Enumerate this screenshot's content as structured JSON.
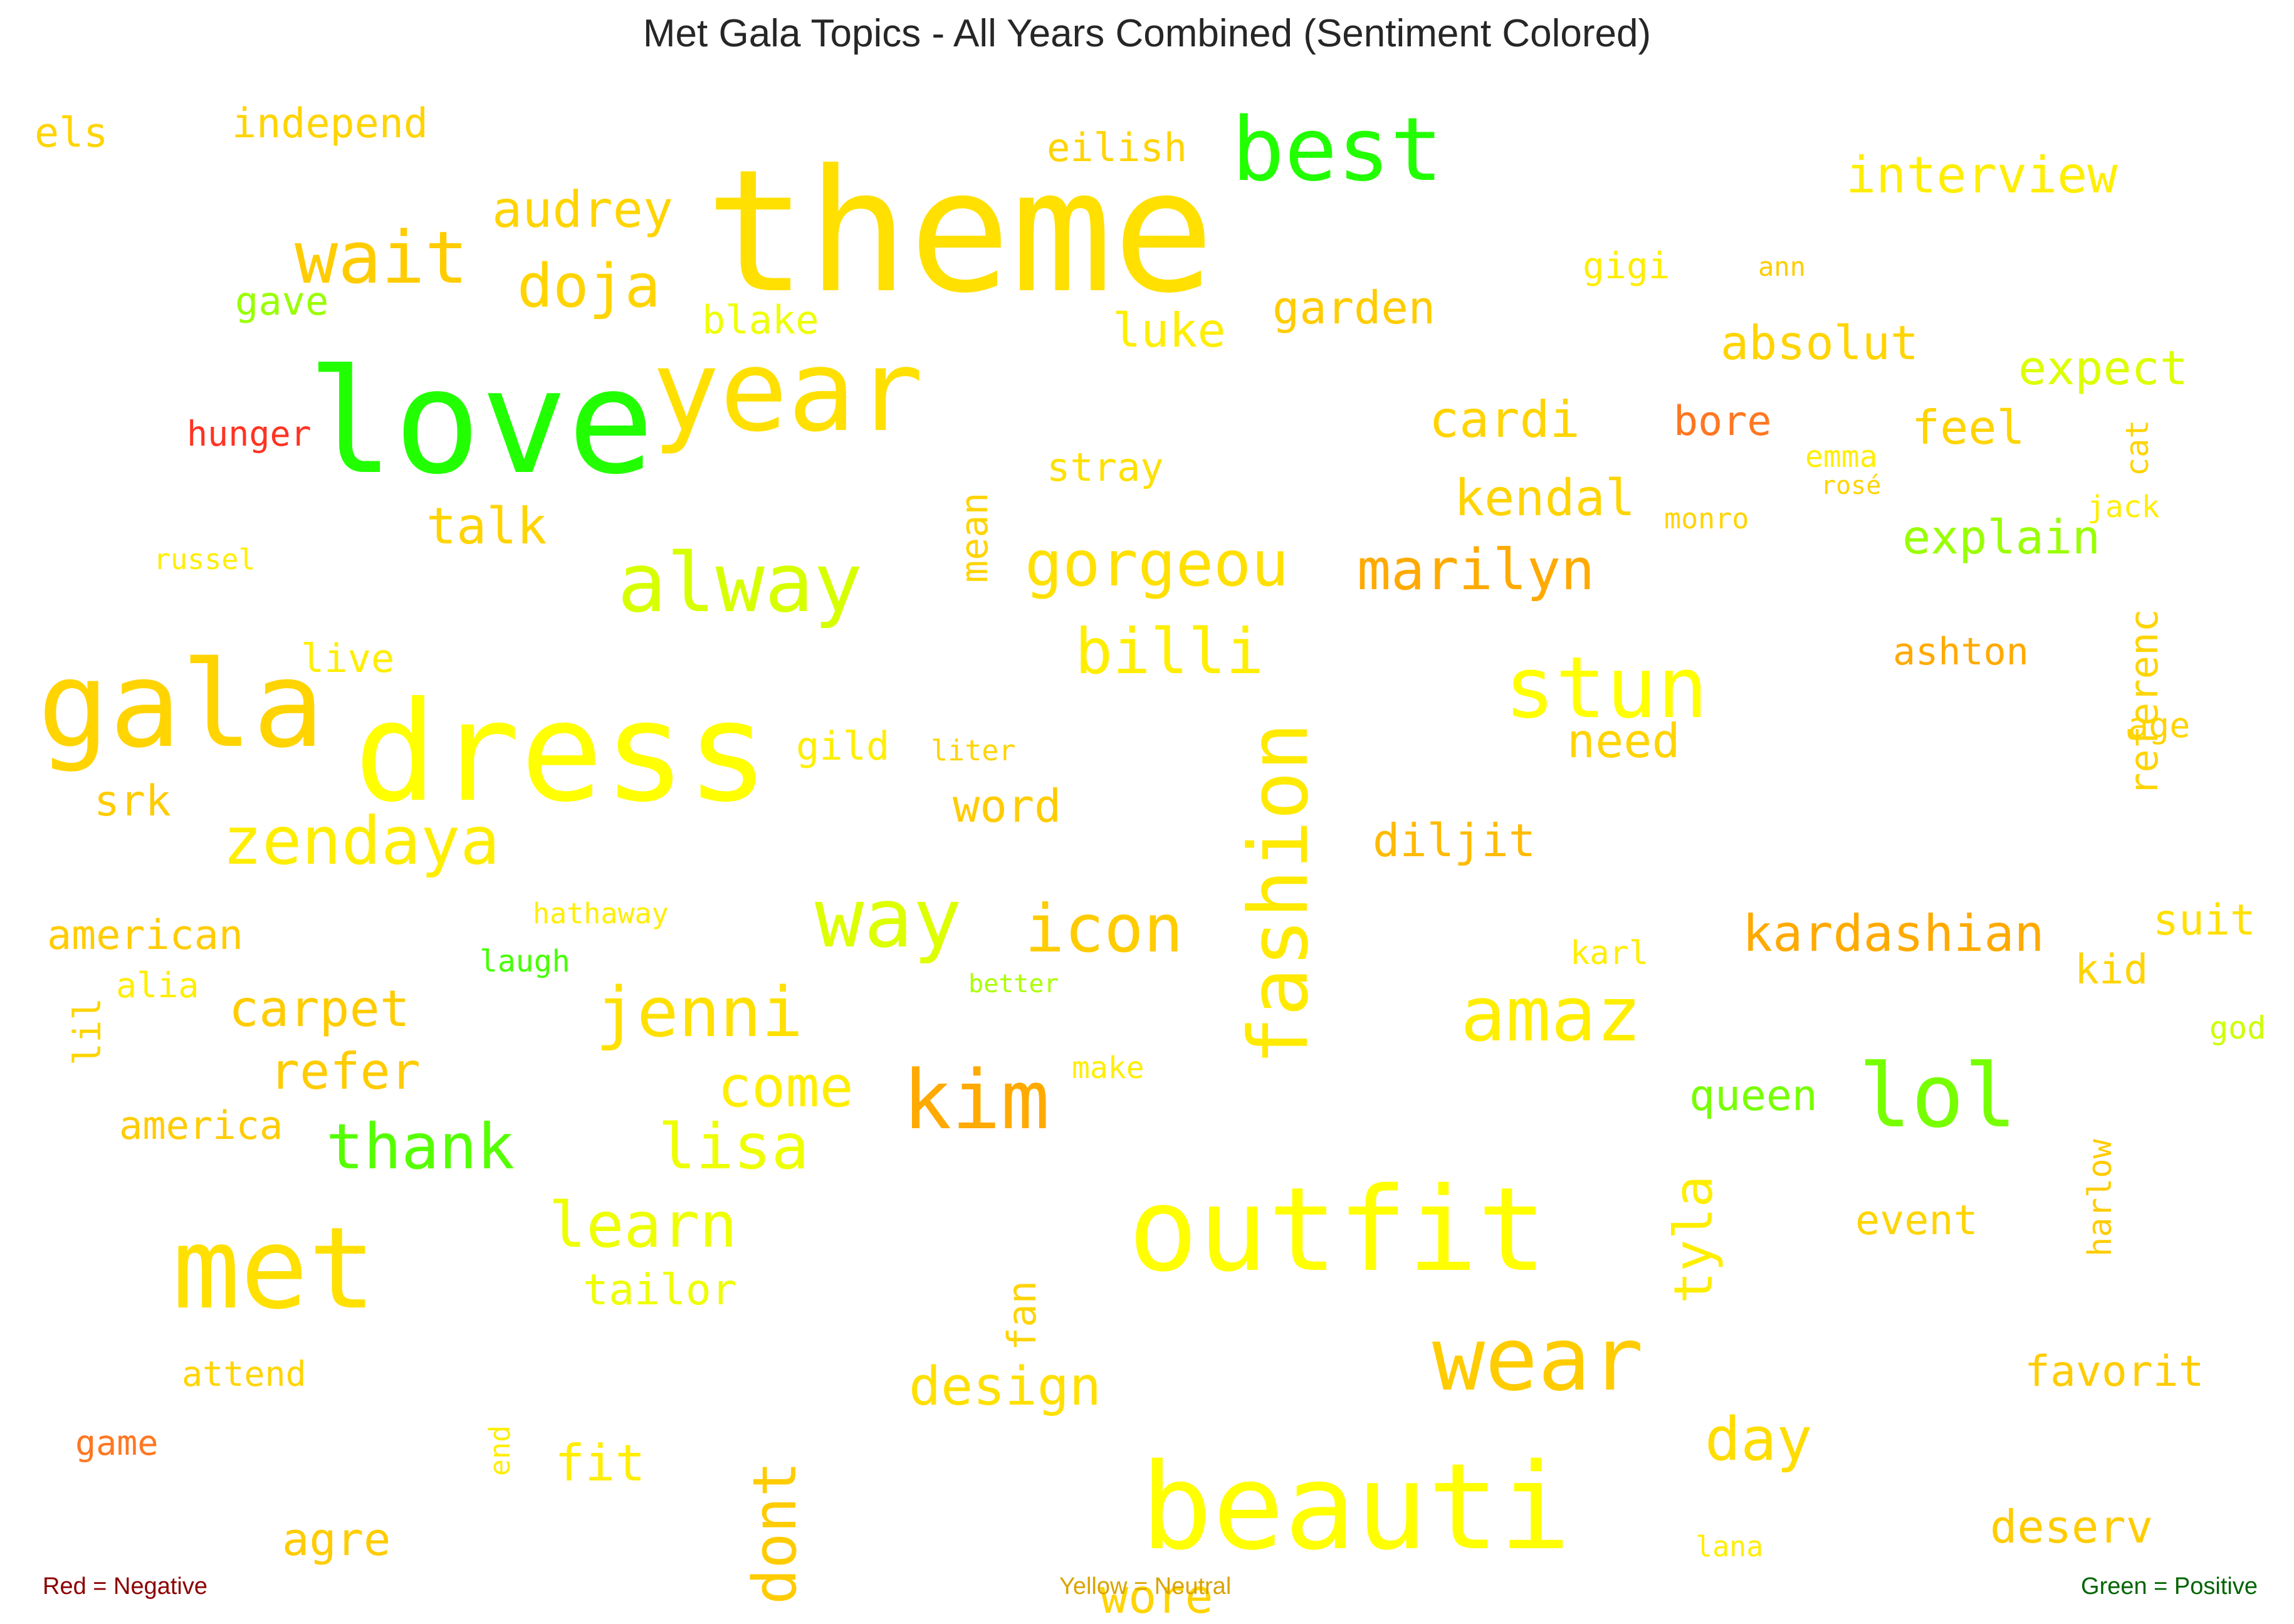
{
  "title": "Met Gala Topics - All Years Combined (Sentiment Colored)",
  "legend": {
    "negative": {
      "label": "Red = Negative",
      "color": "#8b0000"
    },
    "neutral": {
      "label": "Yellow = Neutral",
      "color": "#d9a300"
    },
    "positive": {
      "label": "Green = Positive",
      "color": "#006400"
    }
  },
  "words": [
    {
      "text": "theme",
      "color": "#ffe000"
    },
    {
      "text": "love",
      "color": "#22ff00"
    },
    {
      "text": "year",
      "color": "#ffe000"
    },
    {
      "text": "gala",
      "color": "#ffd400"
    },
    {
      "text": "dress",
      "color": "#ffff00"
    },
    {
      "text": "best",
      "color": "#22ff00"
    },
    {
      "text": "outfit",
      "color": "#ffff00"
    },
    {
      "text": "beauti",
      "color": "#ffff00"
    },
    {
      "text": "met",
      "color": "#ffe000"
    },
    {
      "text": "wear",
      "color": "#ffcc00"
    },
    {
      "text": "fashion",
      "color": "#ffea00"
    },
    {
      "text": "alway",
      "color": "#d8ff00"
    },
    {
      "text": "stun",
      "color": "#ffff00"
    },
    {
      "text": "kim",
      "color": "#ffaa00"
    },
    {
      "text": "way",
      "color": "#ddff00"
    },
    {
      "text": "lol",
      "color": "#77ff00"
    },
    {
      "text": "amaz",
      "color": "#ffee00"
    },
    {
      "text": "wait",
      "color": "#ffcc00"
    },
    {
      "text": "icon",
      "color": "#ffcc00"
    },
    {
      "text": "jenni",
      "color": "#ffe000"
    },
    {
      "text": "zendaya",
      "color": "#ffee00"
    },
    {
      "text": "gorgeou",
      "color": "#ffe000"
    },
    {
      "text": "marilyn",
      "color": "#ffaa00"
    },
    {
      "text": "billi",
      "color": "#ffee00"
    },
    {
      "text": "thank",
      "color": "#55ff00"
    },
    {
      "text": "lisa",
      "color": "#eeff00"
    },
    {
      "text": "learn",
      "color": "#eeff00"
    },
    {
      "text": "doja",
      "color": "#ffd400"
    },
    {
      "text": "kardashian",
      "color": "#ffaa00"
    },
    {
      "text": "design",
      "color": "#ffe000"
    },
    {
      "text": "interview",
      "color": "#ffee00"
    },
    {
      "text": "audrey",
      "color": "#ffd400"
    },
    {
      "text": "cardi",
      "color": "#ffd400"
    },
    {
      "text": "kendal",
      "color": "#ffd400"
    },
    {
      "text": "absolut",
      "color": "#ffd400"
    },
    {
      "text": "expect",
      "color": "#ddff00"
    },
    {
      "text": "explain",
      "color": "#99ff00"
    },
    {
      "text": "talk",
      "color": "#ffd400"
    },
    {
      "text": "carpet",
      "color": "#ffcc00"
    },
    {
      "text": "refer",
      "color": "#ffcc00"
    },
    {
      "text": "come",
      "color": "#ffee00"
    },
    {
      "text": "tyla",
      "color": "#ffee00"
    },
    {
      "text": "day",
      "color": "#ffdd00"
    },
    {
      "text": "dont",
      "color": "#ffcc00"
    },
    {
      "text": "garden",
      "color": "#ffcc00"
    },
    {
      "text": "luke",
      "color": "#ffee00"
    },
    {
      "text": "need",
      "color": "#ffd400"
    },
    {
      "text": "diljit",
      "color": "#ffbb00"
    },
    {
      "text": "word",
      "color": "#ffcc00"
    },
    {
      "text": "feel",
      "color": "#ffd400"
    },
    {
      "text": "bore",
      "color": "#ff7722"
    },
    {
      "text": "queen",
      "color": "#77ff00"
    },
    {
      "text": "tailor",
      "color": "#eeff00"
    },
    {
      "text": "fit",
      "color": "#ffee00"
    },
    {
      "text": "agre",
      "color": "#ffcc00"
    },
    {
      "text": "deserv",
      "color": "#ffcc00"
    },
    {
      "text": "favorit",
      "color": "#ffcc00"
    },
    {
      "text": "event",
      "color": "#ffd400"
    },
    {
      "text": "srk",
      "color": "#ffcc00"
    },
    {
      "text": "american",
      "color": "#ffcc00"
    },
    {
      "text": "america",
      "color": "#ffcc00"
    },
    {
      "text": "ashton",
      "color": "#ffaa00"
    },
    {
      "text": "suit",
      "color": "#ffe000"
    },
    {
      "text": "kid",
      "color": "#ffd400"
    },
    {
      "text": "els",
      "color": "#ffd400"
    },
    {
      "text": "independ",
      "color": "#ffd400"
    },
    {
      "text": "eilish",
      "color": "#ffd400"
    },
    {
      "text": "gave",
      "color": "#99ff00"
    },
    {
      "text": "blake",
      "color": "#eeff00"
    },
    {
      "text": "stray",
      "color": "#ffe000"
    },
    {
      "text": "mean",
      "color": "#ffd400"
    },
    {
      "text": "live",
      "color": "#ffee00"
    },
    {
      "text": "gild",
      "color": "#ffee00"
    },
    {
      "text": "liter",
      "color": "#ffd400"
    },
    {
      "text": "hunger",
      "color": "#ff3322"
    },
    {
      "text": "russel",
      "color": "#ffee00"
    },
    {
      "text": "gigi",
      "color": "#ffee00"
    },
    {
      "text": "ann",
      "color": "#ffcc00"
    },
    {
      "text": "emma",
      "color": "#ffee00"
    },
    {
      "text": "rosé",
      "color": "#ffd400"
    },
    {
      "text": "monro",
      "color": "#ffd400"
    },
    {
      "text": "jack",
      "color": "#ffee00"
    },
    {
      "text": "cat",
      "color": "#ffd400"
    },
    {
      "text": "referenc",
      "color": "#ffd400"
    },
    {
      "text": "age",
      "color": "#ffd400"
    },
    {
      "text": "hathaway",
      "color": "#ffee00"
    },
    {
      "text": "laugh",
      "color": "#44ff00"
    },
    {
      "text": "better",
      "color": "#aaff00"
    },
    {
      "text": "alia",
      "color": "#ffee00"
    },
    {
      "text": "lil",
      "color": "#ffd400"
    },
    {
      "text": "karl",
      "color": "#ffee00"
    },
    {
      "text": "make",
      "color": "#ffee00"
    },
    {
      "text": "god",
      "color": "#ccff00"
    },
    {
      "text": "harlow",
      "color": "#ffcc00"
    },
    {
      "text": "fan",
      "color": "#ffd400"
    },
    {
      "text": "attend",
      "color": "#ffd400"
    },
    {
      "text": "game",
      "color": "#ff7722"
    },
    {
      "text": "end",
      "color": "#ffee00"
    },
    {
      "text": "lana",
      "color": "#ffee00"
    },
    {
      "text": "wore",
      "color": "#ffd400"
    }
  ]
}
